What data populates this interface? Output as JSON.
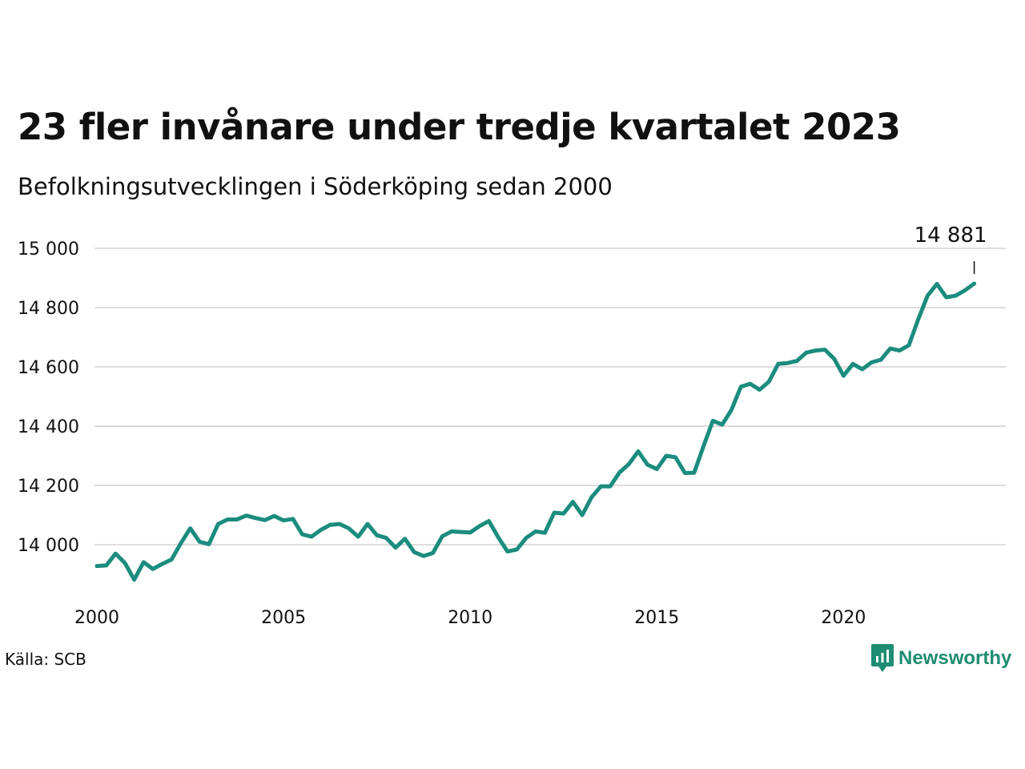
{
  "title": "23 fler invånare under tredje kvartalet 2023",
  "subtitle": "Befolkningsutvecklingen i Söderköping sedan 2000",
  "source": "Källa: SCB",
  "brand": {
    "name": "Newsworthy",
    "color": "#1e8c72",
    "icon": "newsworthy-logo-icon"
  },
  "colors": {
    "line": "#1b8c7e",
    "grid": "#dddddd",
    "text": "#111111"
  },
  "chart_data": {
    "type": "line",
    "title": "23 fler invånare under tredje kvartalet 2023",
    "subtitle": "Befolkningsutvecklingen i Söderköping sedan 2000",
    "xlabel": "",
    "ylabel": "",
    "xlim": [
      2000,
      2024.7
    ],
    "ylim": [
      13880,
      15000
    ],
    "yticks": [
      14000,
      14200,
      14400,
      14600,
      14800,
      15000
    ],
    "ytick_labels": [
      "14 000",
      "14 200",
      "14 400",
      "14 600",
      "14 800",
      "15 000"
    ],
    "xticks": [
      2000,
      2005,
      2010,
      2015,
      2020
    ],
    "xtick_labels": [
      "2000",
      "2005",
      "2010",
      "2015",
      "2020"
    ],
    "grid": true,
    "annotation": {
      "text": "14 881",
      "x": 2023.5,
      "y": 14881
    },
    "series": [
      {
        "x_start": 2000.0,
        "x_step": 0.25,
        "values": [
          13928,
          13930,
          13970,
          13938,
          13882,
          13941,
          13918,
          13935,
          13950,
          14005,
          14055,
          14010,
          14002,
          14070,
          14085,
          14085,
          14098,
          14090,
          14083,
          14097,
          14082,
          14087,
          14035,
          14027,
          14050,
          14067,
          14070,
          14055,
          14027,
          14070,
          14032,
          14023,
          13990,
          14020,
          13975,
          13962,
          13972,
          14028,
          14045,
          14043,
          14041,
          14063,
          14080,
          14025,
          13977,
          13984,
          14023,
          14045,
          14040,
          14108,
          14105,
          14145,
          14100,
          14160,
          14197,
          14197,
          14244,
          14272,
          14315,
          14270,
          14255,
          14300,
          14295,
          14242,
          14243,
          14333,
          14418,
          14405,
          14455,
          14533,
          14543,
          14523,
          14550,
          14610,
          14613,
          14620,
          14648,
          14655,
          14658,
          14627,
          14570,
          14610,
          14592,
          14615,
          14624,
          14662,
          14655,
          14673,
          14760,
          14840,
          14880,
          14835,
          14840,
          14858,
          14881
        ]
      }
    ]
  }
}
